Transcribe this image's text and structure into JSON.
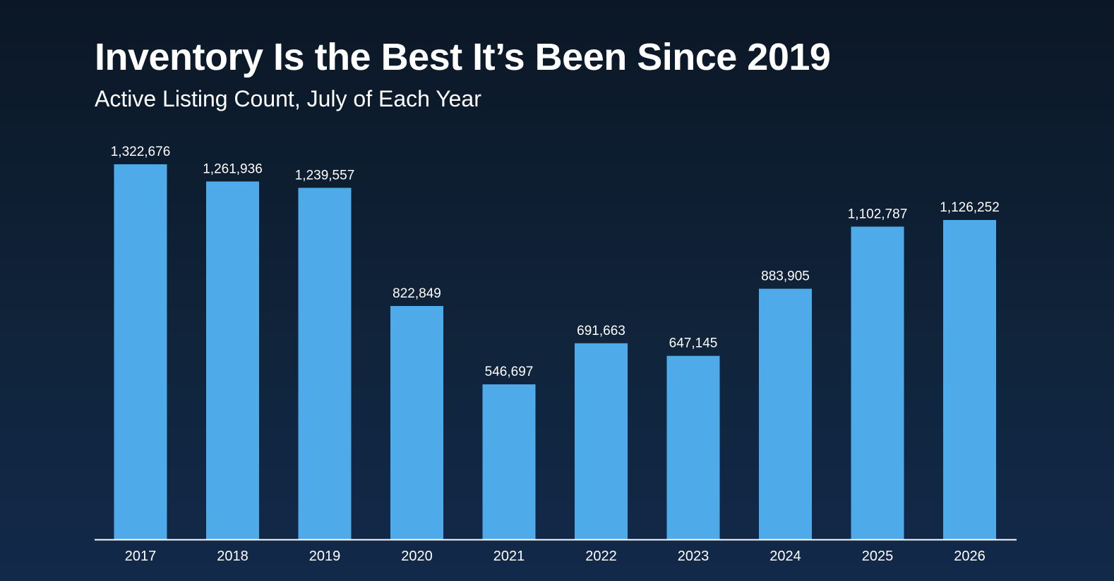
{
  "chart_data": {
    "type": "bar",
    "title": "Inventory Is the Best It’s Been Since 2019",
    "subtitle": "Active Listing Count, July of Each Year",
    "categories": [
      "2017",
      "2018",
      "2019",
      "2020",
      "2021",
      "2022",
      "2023",
      "2024",
      "2025",
      "2026"
    ],
    "values": [
      1322676,
      1261936,
      1239557,
      822849,
      546697,
      691663,
      647145,
      883905,
      1102787,
      1126252
    ],
    "value_labels": [
      "1,322,676",
      "1,261,936",
      "1,239,557",
      "822,849",
      "546,697",
      "691,663",
      "647,145",
      "883,905",
      "1,102,787",
      "1,126,252"
    ],
    "xlabel": "",
    "ylabel": "",
    "ylim": [
      0,
      1322676
    ],
    "grid": false,
    "bar_color": "#4eaae8",
    "axis_color": "#ffffff",
    "background_color": "#0f2238"
  }
}
